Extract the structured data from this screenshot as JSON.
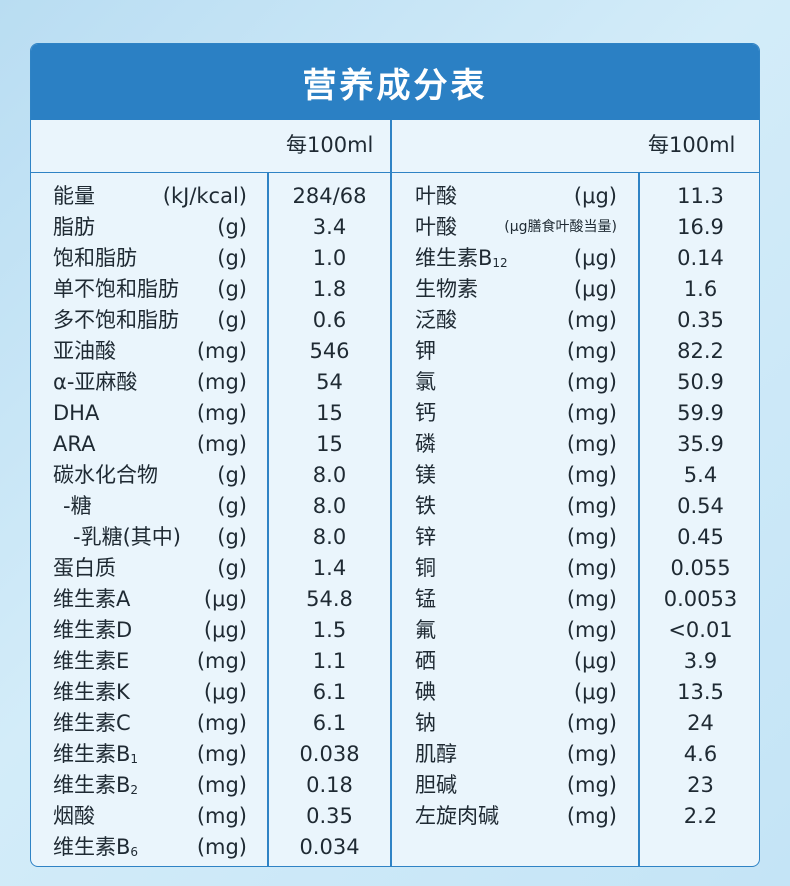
{
  "title": "营养成分表",
  "header": {
    "left": "每100ml",
    "right": "每100ml"
  },
  "left_rows": [
    {
      "name": "能量",
      "unit": "(kJ/kcal)",
      "value": "284/68"
    },
    {
      "name": "脂肪",
      "unit": "(g)",
      "value": "3.4"
    },
    {
      "name": "饱和脂肪",
      "unit": "(g)",
      "value": "1.0"
    },
    {
      "name": "单不饱和脂肪",
      "unit": "(g)",
      "value": "1.8"
    },
    {
      "name": "多不饱和脂肪",
      "unit": "(g)",
      "value": "0.6"
    },
    {
      "name": "亚油酸",
      "unit": "(mg)",
      "value": "546"
    },
    {
      "name": "α-亚麻酸",
      "unit": "(mg)",
      "value": "54"
    },
    {
      "name": "DHA",
      "unit": "(mg)",
      "value": "15"
    },
    {
      "name": "ARA",
      "unit": "(mg)",
      "value": "15"
    },
    {
      "name": "碳水化合物",
      "unit": "(g)",
      "value": "8.0"
    },
    {
      "name": "-糖",
      "unit": "(g)",
      "value": "8.0",
      "indent": 1
    },
    {
      "name": "-乳糖(其中)",
      "unit": "(g)",
      "value": "8.0",
      "indent": 2
    },
    {
      "name": "蛋白质",
      "unit": "(g)",
      "value": "1.4"
    },
    {
      "name": "维生素A",
      "unit": "(μg)",
      "value": "54.8"
    },
    {
      "name": "维生素D",
      "unit": "(μg)",
      "value": "1.5"
    },
    {
      "name": "维生素E",
      "unit": "(mg)",
      "value": "1.1"
    },
    {
      "name": "维生素K",
      "unit": "(μg)",
      "value": "6.1"
    },
    {
      "name": "维生素C",
      "unit": "(mg)",
      "value": "6.1"
    },
    {
      "name": "维生素B",
      "sub": "1",
      "unit": "(mg)",
      "value": "0.038"
    },
    {
      "name": "维生素B",
      "sub": "2",
      "unit": "(mg)",
      "value": "0.18"
    },
    {
      "name": "烟酸",
      "unit": "(mg)",
      "value": "0.35"
    },
    {
      "name": "维生素B",
      "sub": "6",
      "unit": "(mg)",
      "value": "0.034"
    }
  ],
  "right_rows": [
    {
      "name": "叶酸",
      "unit": "(μg)",
      "value": "11.3"
    },
    {
      "name": "叶酸",
      "unit": "(μg膳食叶酸当量)",
      "value": "16.9",
      "small_unit": true
    },
    {
      "name": "维生素B",
      "sub": "12",
      "unit": "(μg)",
      "value": "0.14"
    },
    {
      "name": "生物素",
      "unit": "(μg)",
      "value": "1.6"
    },
    {
      "name": "泛酸",
      "unit": "(mg)",
      "value": "0.35"
    },
    {
      "name": "钾",
      "unit": "(mg)",
      "value": "82.2"
    },
    {
      "name": "氯",
      "unit": "(mg)",
      "value": "50.9"
    },
    {
      "name": "钙",
      "unit": "(mg)",
      "value": "59.9"
    },
    {
      "name": "磷",
      "unit": "(mg)",
      "value": "35.9"
    },
    {
      "name": "镁",
      "unit": "(mg)",
      "value": "5.4"
    },
    {
      "name": "铁",
      "unit": "(mg)",
      "value": "0.54"
    },
    {
      "name": "锌",
      "unit": "(mg)",
      "value": "0.45"
    },
    {
      "name": "铜",
      "unit": "(mg)",
      "value": "0.055"
    },
    {
      "name": "锰",
      "unit": "(mg)",
      "value": "0.0053"
    },
    {
      "name": "氟",
      "unit": "(mg)",
      "value": "<0.01"
    },
    {
      "name": "硒",
      "unit": "(μg)",
      "value": "3.9"
    },
    {
      "name": "碘",
      "unit": "(μg)",
      "value": "13.5"
    },
    {
      "name": "钠",
      "unit": "(mg)",
      "value": "24"
    },
    {
      "name": "肌醇",
      "unit": "(mg)",
      "value": "4.6"
    },
    {
      "name": "胆碱",
      "unit": "(mg)",
      "value": "23"
    },
    {
      "name": "左旋肉碱",
      "unit": "(mg)",
      "value": "2.2"
    }
  ]
}
